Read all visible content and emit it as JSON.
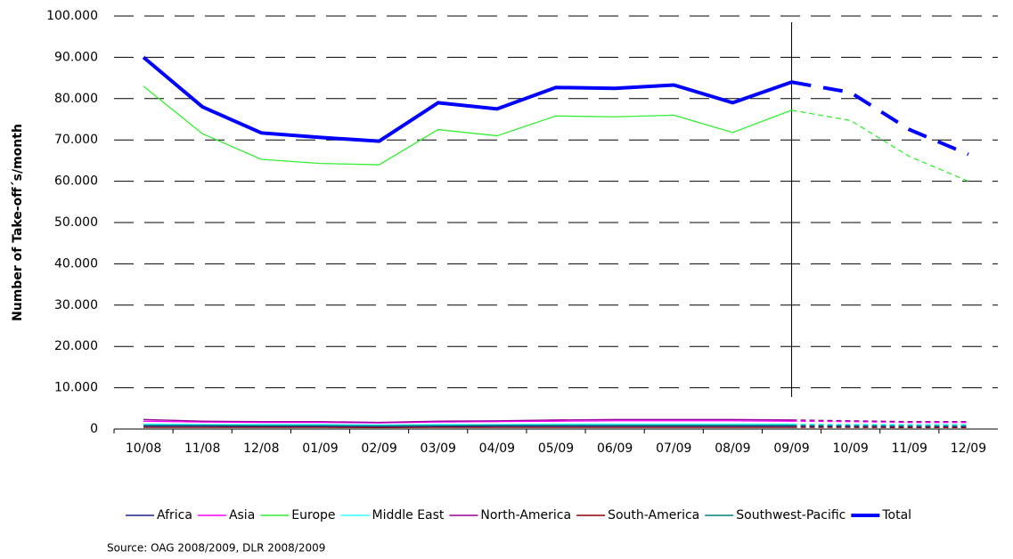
{
  "chart_data": {
    "type": "line",
    "y_label": "Number of Take-off´s/month",
    "source": "Source: OAG 2008/2009, DLR 2008/2009",
    "categories": [
      "10/08",
      "11/08",
      "12/08",
      "01/09",
      "02/09",
      "03/09",
      "04/09",
      "05/09",
      "06/09",
      "07/09",
      "08/09",
      "09/09",
      "10/09",
      "11/09",
      "12/09"
    ],
    "forecast_from": "09/09",
    "ylim": [
      0,
      100000
    ],
    "yticks": [
      0,
      {
        "value": 10000,
        "label": "10.000"
      },
      {
        "value": 20000,
        "label": "20.000"
      },
      {
        "value": 30000,
        "label": "30.000"
      },
      {
        "value": 40000,
        "label": "40.000"
      },
      {
        "value": 50000,
        "label": "50.000"
      },
      {
        "value": 60000,
        "label": "60.000"
      },
      {
        "value": 70000,
        "label": "70.000"
      },
      {
        "value": 80000,
        "label": "80.000"
      },
      {
        "value": 90000,
        "label": "90.000"
      },
      {
        "value": 100000,
        "label": "100.000"
      }
    ],
    "grid": true,
    "legend": "bottom",
    "series": [
      {
        "name": "Africa",
        "color": "#1f1f8c",
        "values": [
          700,
          700,
          650,
          650,
          600,
          650,
          700,
          700,
          700,
          700,
          700,
          700,
          650,
          600,
          600
        ]
      },
      {
        "name": "Asia",
        "color": "#ff00ff",
        "values": [
          1900,
          1700,
          1600,
          1600,
          1500,
          1700,
          1800,
          1900,
          2000,
          2000,
          2000,
          1900,
          1800,
          1600,
          1600
        ]
      },
      {
        "name": "Europe",
        "color": "#33ee33",
        "values": [
          83000,
          71500,
          65300,
          64300,
          64000,
          72500,
          71000,
          75800,
          75600,
          76000,
          71800,
          77200,
          74700,
          66000,
          60000
        ]
      },
      {
        "name": "Middle East",
        "color": "#33ffff",
        "values": [
          1200,
          1100,
          1100,
          1100,
          1000,
          1100,
          1100,
          1200,
          1200,
          1200,
          1200,
          1200,
          1100,
          1100,
          1100
        ]
      },
      {
        "name": "North-America",
        "color": "#990099",
        "values": [
          2300,
          1900,
          1800,
          1800,
          1600,
          1900,
          2000,
          2200,
          2300,
          2300,
          2300,
          2200,
          2000,
          1800,
          1800
        ]
      },
      {
        "name": "South-America",
        "color": "#8b0000",
        "values": [
          400,
          400,
          400,
          400,
          350,
          400,
          400,
          400,
          400,
          400,
          400,
          400,
          400,
          350,
          350
        ]
      },
      {
        "name": "Southwest-Pacific",
        "color": "#008080",
        "values": [
          900,
          900,
          850,
          850,
          800,
          850,
          900,
          900,
          900,
          900,
          900,
          900,
          850,
          800,
          800
        ]
      },
      {
        "name": "Total",
        "color": "#0000ff",
        "width": 4,
        "values": [
          90000,
          78000,
          71700,
          70600,
          69700,
          79000,
          77500,
          82700,
          82500,
          83300,
          79000,
          84000,
          81500,
          72500,
          66500
        ]
      }
    ]
  }
}
